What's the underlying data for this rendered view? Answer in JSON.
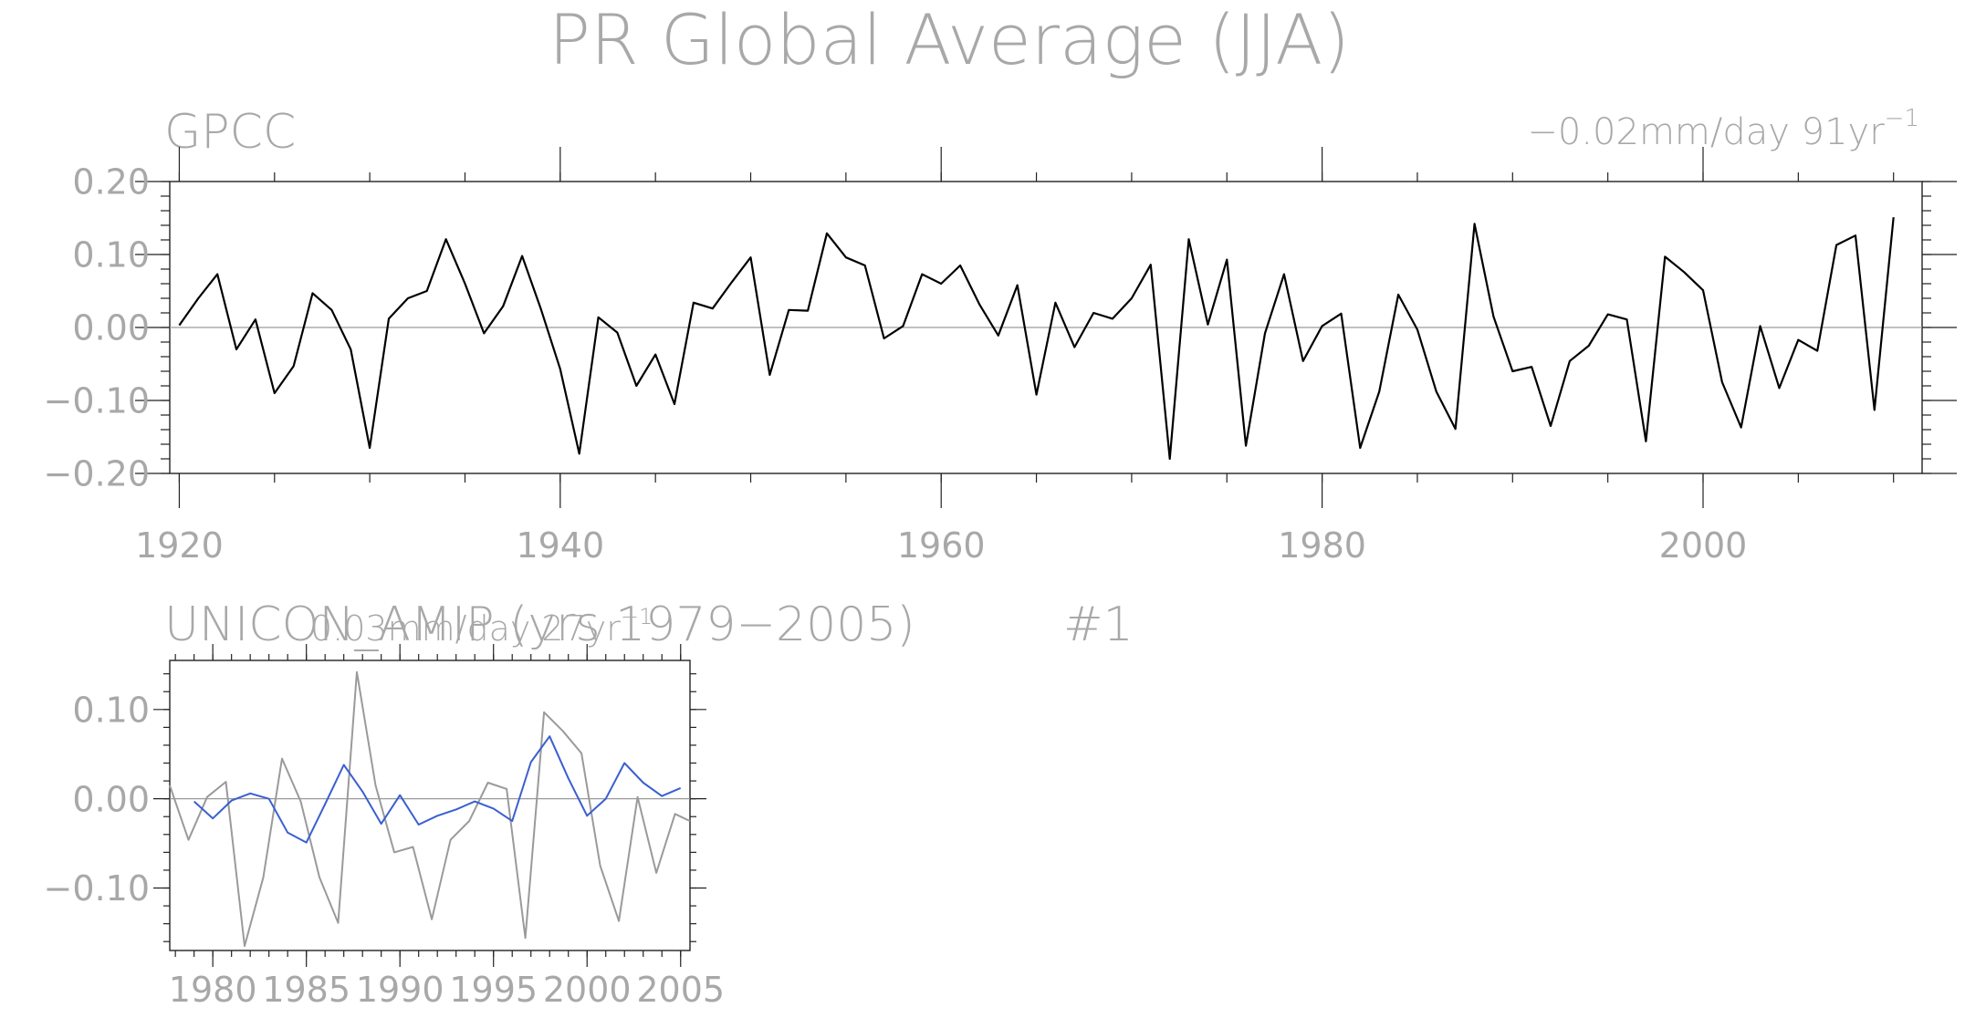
{
  "title": "PR Global Average (JJA)",
  "chart_data": [
    {
      "type": "line",
      "title": "GPCC",
      "trend_label": "−0.02mm/day 91yr",
      "trend_superscript": "−1",
      "ylim": [
        -0.2,
        0.2
      ],
      "xlim": [
        1919.5,
        2011.5
      ],
      "x_ticks": [
        "1920",
        "1940",
        "1960",
        "1980",
        "2000"
      ],
      "y_ticks": [
        "0.20",
        "0.10",
        "0.00",
        "−0.10",
        "−0.20"
      ],
      "series": [
        {
          "color": "#000000",
          "x_start": 1920,
          "values": [
            0.003,
            0.04,
            0.073,
            -0.03,
            0.011,
            -0.09,
            -0.053,
            0.047,
            0.024,
            -0.03,
            -0.165,
            0.012,
            0.04,
            0.05,
            0.121,
            0.06,
            -0.008,
            0.029,
            0.098,
            0.024,
            -0.057,
            -0.173,
            0.014,
            -0.007,
            -0.08,
            -0.037,
            -0.105,
            0.034,
            0.026,
            0.062,
            0.096,
            -0.065,
            0.024,
            0.023,
            0.129,
            0.096,
            0.085,
            -0.015,
            0.002,
            0.073,
            0.06,
            0.085,
            0.032,
            -0.011,
            0.058,
            -0.092,
            0.034,
            -0.027,
            0.02,
            0.012,
            0.04,
            0.086,
            -0.18,
            0.121,
            0.004,
            0.093,
            -0.162,
            -0.008,
            0.073,
            -0.046,
            0.002,
            0.019,
            -0.165,
            -0.088,
            0.045,
            -0.003,
            -0.088,
            -0.139,
            0.142,
            0.015,
            -0.06,
            -0.054,
            -0.135,
            -0.046,
            -0.025,
            0.018,
            0.011,
            -0.156,
            0.097,
            0.076,
            0.051,
            -0.075,
            -0.137,
            0.002,
            -0.083,
            -0.017,
            -0.032,
            0.113,
            0.126,
            -0.113,
            0.151
          ]
        }
      ]
    },
    {
      "type": "line",
      "title": "UNICON_AMIP (yrs 1979−2005)",
      "trend_label": "0.03mm/day 27yr",
      "trend_superscript": "−1",
      "run_label": "#1",
      "ylim": [
        -0.17,
        0.155
      ],
      "xlim": [
        1977.7,
        2005.5
      ],
      "x_ticks": [
        "1980",
        "1985",
        "1990",
        "1995",
        "2000",
        "2005"
      ],
      "y_ticks": [
        "0.10",
        "0.00",
        "−0.10"
      ],
      "series": [
        {
          "color": "#9a9a9a",
          "x_start": 1977.7,
          "values": [
            0.015,
            -0.046,
            0.002,
            0.019,
            -0.165,
            -0.088,
            0.045,
            -0.003,
            -0.088,
            -0.139,
            0.142,
            0.015,
            -0.06,
            -0.054,
            -0.135,
            -0.046,
            -0.025,
            0.018,
            0.011,
            -0.156,
            0.097,
            0.076,
            0.051,
            -0.075,
            -0.137,
            0.002,
            -0.083,
            -0.017,
            -0.025
          ]
        },
        {
          "color": "#3a5fd0",
          "x_start": 1979,
          "values": [
            -0.003,
            -0.022,
            -0.002,
            0.006,
            0.0,
            -0.038,
            -0.049,
            -0.006,
            0.038,
            0.008,
            -0.028,
            0.004,
            -0.029,
            -0.019,
            -0.012,
            -0.003,
            -0.011,
            -0.025,
            0.041,
            0.07,
            0.023,
            -0.019,
            0.0,
            0.04,
            0.018,
            0.003,
            0.012
          ]
        }
      ]
    }
  ]
}
